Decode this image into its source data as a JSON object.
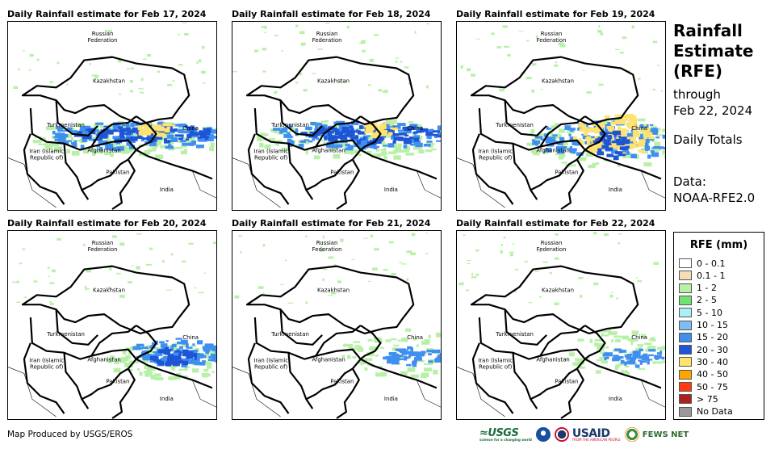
{
  "panels": [
    {
      "title": "Daily Rainfall estimate for Feb 17, 2024",
      "intensity": "heavy"
    },
    {
      "title": "Daily Rainfall estimate for Feb 18, 2024",
      "intensity": "heavy"
    },
    {
      "title": "Daily Rainfall estimate for Feb 19, 2024",
      "intensity": "extreme"
    },
    {
      "title": "Daily Rainfall estimate for Feb 20, 2024",
      "intensity": "moderate"
    },
    {
      "title": "Daily Rainfall estimate for Feb 21, 2024",
      "intensity": "light"
    },
    {
      "title": "Daily Rainfall estimate for Feb 22, 2024",
      "intensity": "light"
    }
  ],
  "map_labels": {
    "russia": "Russian\nFederation",
    "kazakhstan": "Kazakhstan",
    "turkmenistan": "Turkmenistan",
    "iran": "Iran  (Islamic\nRepublic of)",
    "afghanistan": "Afghanistan",
    "pakistan": "Pakistan",
    "india": "India",
    "china": "China"
  },
  "sidebar": {
    "title_lines": [
      "Rainfall",
      "Estimate",
      "(RFE)"
    ],
    "through_line1": "through",
    "through_line2": "Feb 22, 2024",
    "totals": "Daily Totals",
    "data_line1": "Data:",
    "data_line2": "NOAA-RFE2.0"
  },
  "legend": {
    "title": "RFE (mm)",
    "items": [
      {
        "label": "0 - 0.1",
        "color": "#ffffff"
      },
      {
        "label": "0.1 - 1",
        "color": "#f5deb3"
      },
      {
        "label": "1 - 2",
        "color": "#b8f0a8"
      },
      {
        "label": "2 - 5",
        "color": "#6fe36f"
      },
      {
        "label": "5 - 10",
        "color": "#aaf0f5"
      },
      {
        "label": "10 - 15",
        "color": "#7cbef5"
      },
      {
        "label": "15 - 20",
        "color": "#3f8ff0"
      },
      {
        "label": "20 - 30",
        "color": "#1e55d6"
      },
      {
        "label": "30 - 40",
        "color": "#ffe36e"
      },
      {
        "label": "40 - 50",
        "color": "#ffa500"
      },
      {
        "label": "50 - 75",
        "color": "#ff3c10"
      },
      {
        "label": "> 75",
        "color": "#b01e1e"
      },
      {
        "label": "No Data",
        "color": "#999999"
      }
    ]
  },
  "footer": {
    "credit": "Map Produced by USGS/EROS"
  },
  "logos": {
    "usgs": "≈USGS",
    "usgs_tagline": "science for a changing world",
    "usaid": "USAID",
    "usaid_tagline": "FROM THE AMERICAN PEOPLE",
    "fews": "FEWS NET"
  }
}
